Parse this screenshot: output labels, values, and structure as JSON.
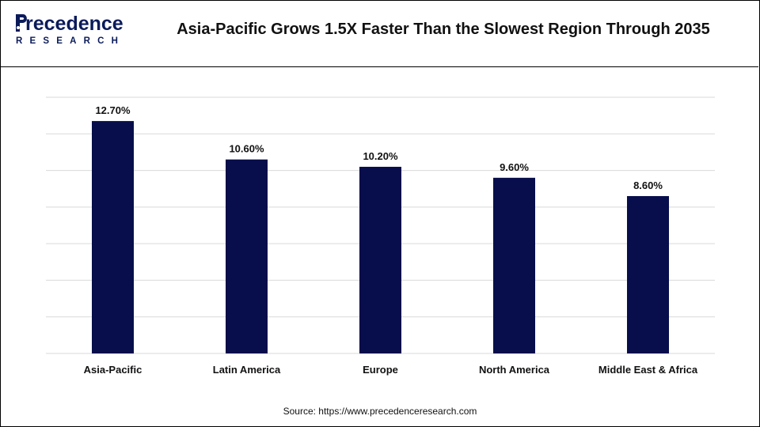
{
  "logo": {
    "main": "recedence",
    "sub": "RESEARCH"
  },
  "colors": {
    "bar": "#070e4b",
    "brand": "#0b1b5a",
    "grid": "#d9d9d9"
  },
  "source": "Source: https://www.precedenceresearch.com",
  "chart_data": {
    "type": "bar",
    "title": "Asia-Pacific Grows 1.5X Faster Than the Slowest Region Through 2035",
    "xlabel": "",
    "ylabel": "",
    "ylim": [
      0,
      14
    ],
    "grid": true,
    "categories": [
      "Asia-Pacific",
      "Latin America",
      "Europe",
      "North America",
      "Middle East & Africa"
    ],
    "values": [
      12.7,
      10.6,
      10.2,
      9.6,
      8.6
    ],
    "data_labels": [
      "12.70%",
      "10.60%",
      "10.20%",
      "9.60%",
      "8.60%"
    ]
  }
}
